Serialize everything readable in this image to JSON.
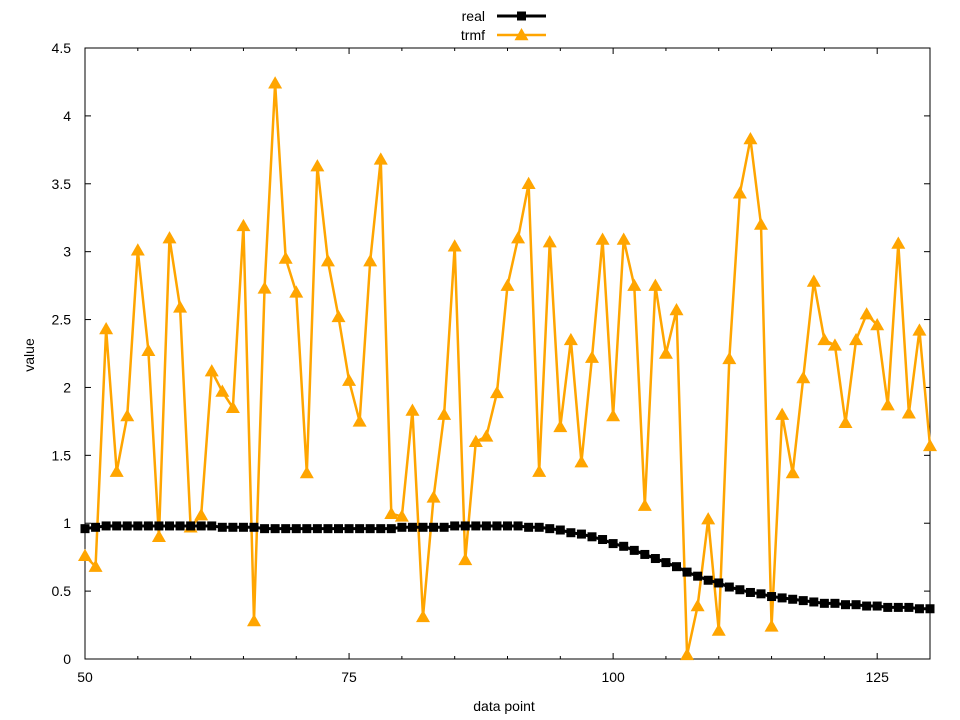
{
  "chart_data": {
    "type": "line",
    "xlabel": "data point",
    "ylabel": "value",
    "xlim": [
      50,
      130
    ],
    "ylim": [
      0,
      4.5
    ],
    "xticks": [
      50,
      75,
      100,
      125
    ],
    "yticks": [
      0,
      0.5,
      1,
      1.5,
      2,
      2.5,
      3,
      3.5,
      4,
      4.5
    ],
    "xtick_labels": [
      "50",
      "75",
      "100",
      "125"
    ],
    "ytick_labels": [
      "0",
      "0.5",
      "1",
      "1.5",
      "2",
      "2.5",
      "3",
      "3.5",
      "4",
      "4.5"
    ],
    "legend_position": "top-center",
    "grid": false,
    "series": [
      {
        "name": "real",
        "color": "#000000",
        "marker": "square",
        "x": [
          50,
          51,
          52,
          53,
          54,
          55,
          56,
          57,
          58,
          59,
          60,
          61,
          62,
          63,
          64,
          65,
          66,
          67,
          68,
          69,
          70,
          71,
          72,
          73,
          74,
          75,
          76,
          77,
          78,
          79,
          80,
          81,
          82,
          83,
          84,
          85,
          86,
          87,
          88,
          89,
          90,
          91,
          92,
          93,
          94,
          95,
          96,
          97,
          98,
          99,
          100,
          101,
          102,
          103,
          104,
          105,
          106,
          107,
          108,
          109,
          110,
          111,
          112,
          113,
          114,
          115,
          116,
          117,
          118,
          119,
          120,
          121,
          122,
          123,
          124,
          125,
          126,
          127,
          128,
          129,
          130
        ],
        "y": [
          0.96,
          0.97,
          0.98,
          0.98,
          0.98,
          0.98,
          0.98,
          0.98,
          0.98,
          0.98,
          0.98,
          0.98,
          0.98,
          0.97,
          0.97,
          0.97,
          0.97,
          0.96,
          0.96,
          0.96,
          0.96,
          0.96,
          0.96,
          0.96,
          0.96,
          0.96,
          0.96,
          0.96,
          0.96,
          0.96,
          0.97,
          0.97,
          0.97,
          0.97,
          0.97,
          0.98,
          0.98,
          0.98,
          0.98,
          0.98,
          0.98,
          0.98,
          0.97,
          0.97,
          0.96,
          0.95,
          0.93,
          0.92,
          0.9,
          0.88,
          0.85,
          0.83,
          0.8,
          0.77,
          0.74,
          0.71,
          0.68,
          0.64,
          0.61,
          0.58,
          0.56,
          0.53,
          0.51,
          0.49,
          0.48,
          0.46,
          0.45,
          0.44,
          0.43,
          0.42,
          0.41,
          0.41,
          0.4,
          0.4,
          0.39,
          0.39,
          0.38,
          0.38,
          0.38,
          0.37,
          0.37
        ]
      },
      {
        "name": "trmf",
        "color": "#ffa500",
        "marker": "triangle",
        "x": [
          50,
          51,
          52,
          53,
          54,
          55,
          56,
          57,
          58,
          59,
          60,
          61,
          62,
          63,
          64,
          65,
          66,
          67,
          68,
          69,
          70,
          71,
          72,
          73,
          74,
          75,
          76,
          77,
          78,
          79,
          80,
          81,
          82,
          83,
          84,
          85,
          86,
          87,
          88,
          89,
          90,
          91,
          92,
          93,
          94,
          95,
          96,
          97,
          98,
          99,
          100,
          101,
          102,
          103,
          104,
          105,
          106,
          107,
          108,
          109,
          110,
          111,
          112,
          113,
          114,
          115,
          116,
          117,
          118,
          119,
          120,
          121,
          122,
          123,
          124,
          125,
          126,
          127,
          128,
          129,
          130
        ],
        "y": [
          0.76,
          0.68,
          2.43,
          1.38,
          1.79,
          3.01,
          2.27,
          0.9,
          3.1,
          2.59,
          0.97,
          1.06,
          2.12,
          1.97,
          1.85,
          3.19,
          0.28,
          2.73,
          4.24,
          2.95,
          2.7,
          1.37,
          3.63,
          2.93,
          2.52,
          2.05,
          1.75,
          2.93,
          3.68,
          1.07,
          1.05,
          1.83,
          0.31,
          1.19,
          1.8,
          3.04,
          0.73,
          1.6,
          1.64,
          1.96,
          2.75,
          3.1,
          3.5,
          1.38,
          3.07,
          1.71,
          2.35,
          1.45,
          2.22,
          3.09,
          1.79,
          3.09,
          2.75,
          1.13,
          2.75,
          2.25,
          2.57,
          0.03,
          0.39,
          1.03,
          0.21,
          2.21,
          3.43,
          3.83,
          3.2,
          0.24,
          1.8,
          1.37,
          2.07,
          2.78,
          2.35,
          2.31,
          1.74,
          2.35,
          2.54,
          2.46,
          1.87,
          3.06,
          1.81,
          2.42,
          1.57
        ]
      }
    ]
  }
}
